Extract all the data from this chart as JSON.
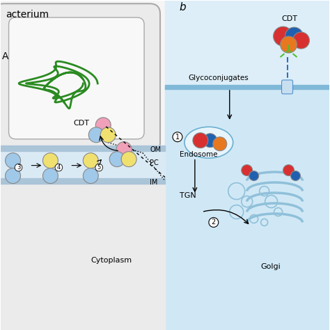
{
  "bg_color": "#ffffff",
  "left_panel_bg": "#f0f0f0",
  "bacterium_bg": "#e8e8e8",
  "membrane_color": "#aac4d8",
  "pc_color": "#d8e8f0",
  "cytoplasm_color": "#e8e8e8",
  "right_panel_bg": "#ddeef8",
  "cell_blue": "#7ab8d8",
  "yellow_color": "#f0e070",
  "light_blue_color": "#a0c8e8",
  "pink_color": "#f0a0b8",
  "red_color": "#d83030",
  "orange_color": "#e87820",
  "dark_blue_color": "#2060b0",
  "green_color": "#50a830",
  "label_b": "b",
  "text_bacterium": "acterium",
  "text_CDT_left": "CDT",
  "text_CDT_right": "CDT",
  "text_OM": "OM",
  "text_PC": "PC",
  "text_IM": "IM",
  "text_cytoplasm": "Cytoplasm",
  "text_glyco": "Glycoconjugates",
  "text_endosome": "Endosome",
  "text_TGN": "TGN",
  "text_golgi": "Golgi"
}
